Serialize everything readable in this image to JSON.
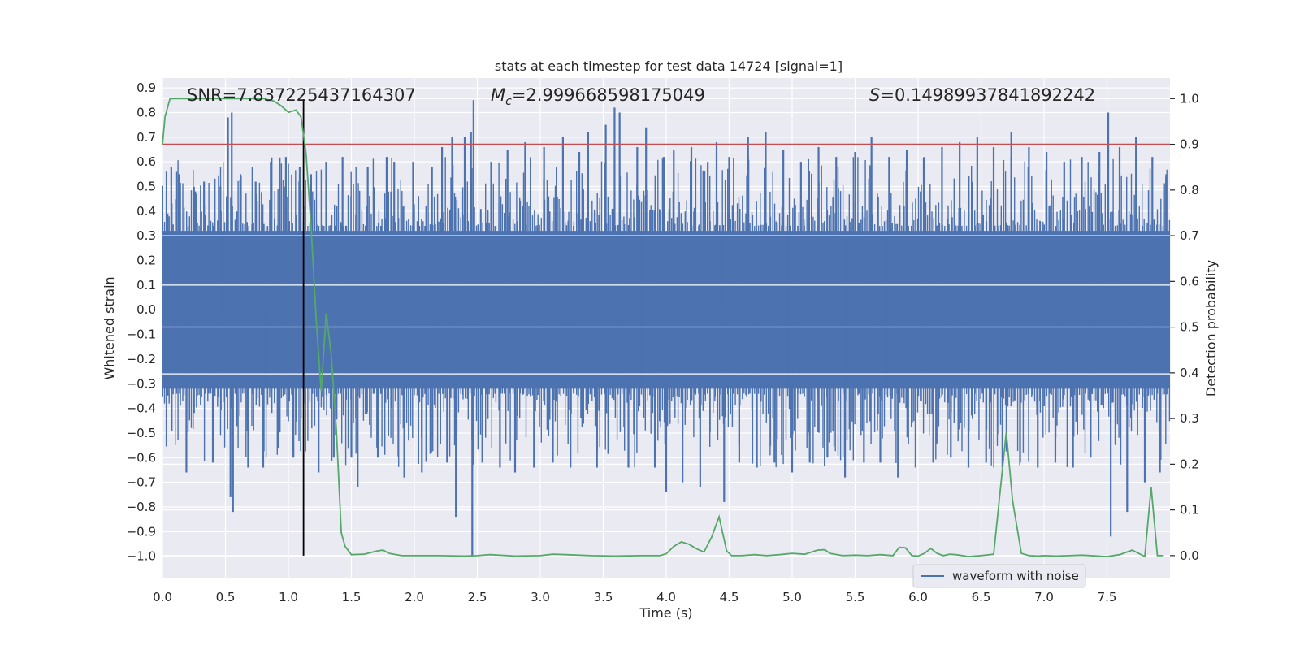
{
  "chart_data": {
    "type": "line",
    "title": "stats at each timestep for test data 14724 [signal=1]",
    "xlabel": "Time (s)",
    "ylabel": "Whitened strain",
    "y2label": "Detection probability",
    "xlim": [
      0.0,
      8.0
    ],
    "ylim": [
      -1.09,
      0.94
    ],
    "y2lim": [
      -0.05,
      1.045
    ],
    "xticks": [
      "0.0",
      "0.5",
      "1.0",
      "1.5",
      "2.0",
      "2.5",
      "3.0",
      "3.5",
      "4.0",
      "4.5",
      "5.0",
      "5.5",
      "6.0",
      "6.5",
      "7.0",
      "7.5"
    ],
    "yticks": [
      "0.9",
      "0.8",
      "0.7",
      "0.6",
      "0.5",
      "0.4",
      "0.3",
      "0.2",
      "0.1",
      "0.0",
      "-0.1",
      "-0.2",
      "-0.3",
      "-0.4",
      "-0.5",
      "-0.6",
      "-0.7",
      "-0.8",
      "-0.9",
      "-1.0"
    ],
    "y2ticks": [
      "1.0",
      "0.9",
      "0.8",
      "0.7",
      "0.6",
      "0.5",
      "0.4",
      "0.3",
      "0.2",
      "0.1",
      "0.0"
    ],
    "grid": true,
    "legend": {
      "label": "waveform with noise",
      "placement": "lower-right"
    },
    "annotations": {
      "snr": "SNR=7.837225437164307",
      "mc_symbol": "M",
      "mc_subscript": "c",
      "mc_value": "=2.999668598175049",
      "s_symbol": "S",
      "s_value": "=0.14989937841892242"
    },
    "threshold": {
      "value": 0.9,
      "axis": "y2",
      "color": "#c44e52"
    },
    "marker_time": 1.12,
    "series": [
      {
        "name": "waveform with noise",
        "color": "#4c72b0",
        "axis": "y",
        "core_envelope": [
          -0.32,
          0.32
        ],
        "spikes": [
          {
            "x": 0.07,
            "y": 0.58
          },
          {
            "x": 0.13,
            "y": 0.55
          },
          {
            "x": 0.19,
            "y": -0.66
          },
          {
            "x": 0.26,
            "y": 0.48
          },
          {
            "x": 0.33,
            "y": 0.52
          },
          {
            "x": 0.4,
            "y": -0.62
          },
          {
            "x": 0.46,
            "y": 0.5
          },
          {
            "x": 0.52,
            "y": 0.78
          },
          {
            "x": 0.54,
            "y": -0.76
          },
          {
            "x": 0.55,
            "y": 0.8
          },
          {
            "x": 0.56,
            "y": -0.82
          },
          {
            "x": 0.62,
            "y": 0.55
          },
          {
            "x": 0.68,
            "y": -0.64
          },
          {
            "x": 0.74,
            "y": 0.52
          },
          {
            "x": 0.8,
            "y": -0.64
          },
          {
            "x": 0.86,
            "y": 0.6
          },
          {
            "x": 0.92,
            "y": -0.56
          },
          {
            "x": 0.98,
            "y": 0.62
          },
          {
            "x": 1.04,
            "y": -0.6
          },
          {
            "x": 1.09,
            "y": 0.58
          },
          {
            "x": 1.18,
            "y": 0.55
          },
          {
            "x": 1.24,
            "y": -0.66
          },
          {
            "x": 1.3,
            "y": 0.6
          },
          {
            "x": 1.36,
            "y": -0.6
          },
          {
            "x": 1.43,
            "y": 0.62
          },
          {
            "x": 1.5,
            "y": -0.6
          },
          {
            "x": 1.55,
            "y": -0.72
          },
          {
            "x": 1.63,
            "y": 0.58
          },
          {
            "x": 1.71,
            "y": -0.6
          },
          {
            "x": 1.78,
            "y": 0.62
          },
          {
            "x": 1.84,
            "y": 0.6
          },
          {
            "x": 1.92,
            "y": -0.68
          },
          {
            "x": 1.99,
            "y": 0.6
          },
          {
            "x": 2.06,
            "y": -0.66
          },
          {
            "x": 2.14,
            "y": 0.58
          },
          {
            "x": 2.22,
            "y": 0.66
          },
          {
            "x": 2.26,
            "y": -0.62
          },
          {
            "x": 2.3,
            "y": 0.7
          },
          {
            "x": 2.33,
            "y": -0.84
          },
          {
            "x": 2.4,
            "y": 0.7
          },
          {
            "x": 2.45,
            "y": 0.72
          },
          {
            "x": 2.46,
            "y": -1.0
          },
          {
            "x": 2.47,
            "y": 0.85
          },
          {
            "x": 2.54,
            "y": -0.62
          },
          {
            "x": 2.61,
            "y": 0.6
          },
          {
            "x": 2.68,
            "y": -0.64
          },
          {
            "x": 2.74,
            "y": 0.65
          },
          {
            "x": 2.8,
            "y": -0.66
          },
          {
            "x": 2.88,
            "y": 0.68
          },
          {
            "x": 2.95,
            "y": -0.64
          },
          {
            "x": 3.03,
            "y": 0.66
          },
          {
            "x": 3.1,
            "y": -0.62
          },
          {
            "x": 3.18,
            "y": 0.7
          },
          {
            "x": 3.24,
            "y": -0.64
          },
          {
            "x": 3.31,
            "y": 0.64
          },
          {
            "x": 3.38,
            "y": 0.72
          },
          {
            "x": 3.45,
            "y": -0.64
          },
          {
            "x": 3.52,
            "y": 0.75
          },
          {
            "x": 3.59,
            "y": 0.82
          },
          {
            "x": 3.63,
            "y": 0.8
          },
          {
            "x": 3.7,
            "y": -0.64
          },
          {
            "x": 3.77,
            "y": 0.66
          },
          {
            "x": 3.84,
            "y": 0.74
          },
          {
            "x": 3.91,
            "y": -0.64
          },
          {
            "x": 3.98,
            "y": 0.62
          },
          {
            "x": 4.0,
            "y": -0.74
          },
          {
            "x": 4.06,
            "y": 0.65
          },
          {
            "x": 4.13,
            "y": -0.7
          },
          {
            "x": 4.2,
            "y": 0.66
          },
          {
            "x": 4.27,
            "y": -0.72
          },
          {
            "x": 4.33,
            "y": 0.6
          },
          {
            "x": 4.4,
            "y": 0.68
          },
          {
            "x": 4.46,
            "y": -0.78
          },
          {
            "x": 4.5,
            "y": 0.62
          },
          {
            "x": 4.58,
            "y": -0.62
          },
          {
            "x": 4.65,
            "y": 0.7
          },
          {
            "x": 4.72,
            "y": -0.64
          },
          {
            "x": 4.79,
            "y": 0.72
          },
          {
            "x": 4.86,
            "y": -0.62
          },
          {
            "x": 4.93,
            "y": 0.65
          },
          {
            "x": 5.0,
            "y": -0.66
          },
          {
            "x": 5.07,
            "y": 0.6
          },
          {
            "x": 5.14,
            "y": -0.62
          },
          {
            "x": 5.21,
            "y": 0.66
          },
          {
            "x": 5.28,
            "y": -0.6
          },
          {
            "x": 5.35,
            "y": 0.62
          },
          {
            "x": 5.42,
            "y": -0.68
          },
          {
            "x": 5.5,
            "y": 0.64
          },
          {
            "x": 5.57,
            "y": -0.62
          },
          {
            "x": 5.63,
            "y": 0.7
          },
          {
            "x": 5.7,
            "y": -0.62
          },
          {
            "x": 5.77,
            "y": 0.62
          },
          {
            "x": 5.84,
            "y": -0.68
          },
          {
            "x": 5.91,
            "y": 0.65
          },
          {
            "x": 5.98,
            "y": -0.64
          },
          {
            "x": 6.05,
            "y": 0.62
          },
          {
            "x": 6.12,
            "y": -0.62
          },
          {
            "x": 6.19,
            "y": 0.66
          },
          {
            "x": 6.26,
            "y": -0.6
          },
          {
            "x": 6.33,
            "y": 0.68
          },
          {
            "x": 6.4,
            "y": -0.64
          },
          {
            "x": 6.47,
            "y": 0.7
          },
          {
            "x": 6.54,
            "y": -0.62
          },
          {
            "x": 6.6,
            "y": 0.66
          },
          {
            "x": 6.67,
            "y": -0.64
          },
          {
            "x": 6.74,
            "y": 0.72
          },
          {
            "x": 6.81,
            "y": -0.62
          },
          {
            "x": 6.88,
            "y": 0.66
          },
          {
            "x": 6.95,
            "y": -0.64
          },
          {
            "x": 7.02,
            "y": 0.64
          },
          {
            "x": 7.09,
            "y": -0.62
          },
          {
            "x": 7.16,
            "y": 0.6
          },
          {
            "x": 7.23,
            "y": -0.64
          },
          {
            "x": 7.3,
            "y": 0.62
          },
          {
            "x": 7.37,
            "y": -0.6
          },
          {
            "x": 7.44,
            "y": 0.64
          },
          {
            "x": 7.51,
            "y": 0.8
          },
          {
            "x": 7.53,
            "y": -0.92
          },
          {
            "x": 7.6,
            "y": 0.66
          },
          {
            "x": 7.66,
            "y": -0.82
          },
          {
            "x": 7.73,
            "y": 0.7
          },
          {
            "x": 7.8,
            "y": -0.7
          },
          {
            "x": 7.86,
            "y": 0.62
          },
          {
            "x": 7.92,
            "y": -0.66
          },
          {
            "x": 7.97,
            "y": 0.55
          }
        ]
      },
      {
        "name": "detection probability",
        "color": "#55a868",
        "axis": "y2",
        "x": [
          0.0,
          0.02,
          0.06,
          0.12,
          0.2,
          0.3,
          0.4,
          0.5,
          0.6,
          0.7,
          0.8,
          0.88,
          0.94,
          1.0,
          1.06,
          1.1,
          1.14,
          1.18,
          1.22,
          1.26,
          1.3,
          1.34,
          1.38,
          1.42,
          1.45,
          1.5,
          1.6,
          1.7,
          1.75,
          1.8,
          1.9,
          2.0,
          2.2,
          2.4,
          2.5,
          2.6,
          2.8,
          3.0,
          3.1,
          3.2,
          3.4,
          3.6,
          3.8,
          3.95,
          4.0,
          4.06,
          4.12,
          4.18,
          4.24,
          4.3,
          4.36,
          4.42,
          4.48,
          4.52,
          4.6,
          4.7,
          4.8,
          4.9,
          5.0,
          5.1,
          5.2,
          5.26,
          5.3,
          5.4,
          5.5,
          5.6,
          5.7,
          5.8,
          5.85,
          5.9,
          5.95,
          6.0,
          6.05,
          6.1,
          6.15,
          6.2,
          6.25,
          6.3,
          6.4,
          6.5,
          6.6,
          6.7,
          6.75,
          6.82,
          6.88,
          6.95,
          7.0,
          7.1,
          7.2,
          7.3,
          7.5,
          7.6,
          7.7,
          7.75,
          7.8,
          7.85,
          7.9,
          7.95
        ],
        "values": [
          0.9,
          0.96,
          1.0,
          1.0,
          1.0,
          1.0,
          1.0,
          1.0,
          1.0,
          1.0,
          1.0,
          0.995,
          0.985,
          0.97,
          0.975,
          0.96,
          0.88,
          0.72,
          0.52,
          0.36,
          0.53,
          0.44,
          0.28,
          0.05,
          0.02,
          0.002,
          0.003,
          0.01,
          0.012,
          0.005,
          0.0,
          0.0,
          0.0,
          -0.001,
          0.0,
          0.002,
          -0.001,
          0.0,
          0.003,
          0.002,
          0.0,
          -0.001,
          0.0,
          0.0,
          0.004,
          0.02,
          0.03,
          0.025,
          0.015,
          0.008,
          0.04,
          0.085,
          0.01,
          0.0,
          0.0,
          0.002,
          0.0,
          0.002,
          0.005,
          0.003,
          0.012,
          0.013,
          0.005,
          0.0,
          0.001,
          0.0,
          0.002,
          0.0,
          0.018,
          0.017,
          0.0,
          -0.001,
          0.005,
          0.016,
          0.005,
          0.0,
          0.003,
          0.002,
          -0.002,
          0.0,
          0.003,
          0.27,
          0.12,
          0.005,
          0.0,
          -0.001,
          0.0,
          -0.001,
          0.0,
          0.001,
          -0.002,
          0.002,
          0.012,
          0.005,
          -0.002,
          0.15,
          0.0,
          0.0
        ]
      }
    ]
  }
}
